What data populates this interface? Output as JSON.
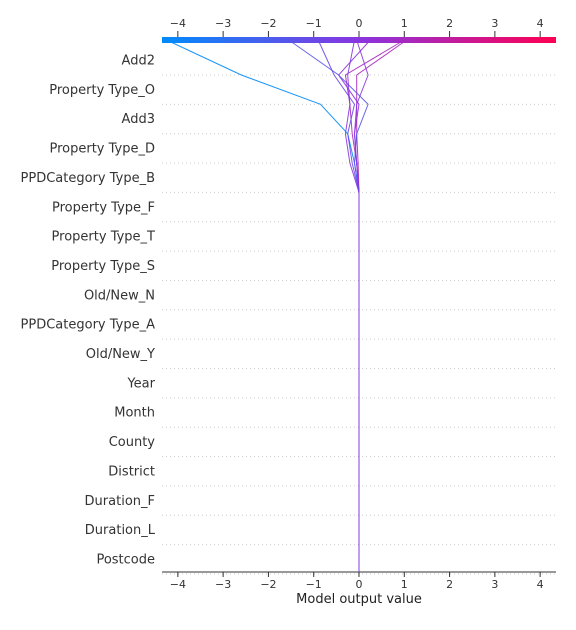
{
  "chart_data": {
    "type": "line",
    "title": "",
    "xlabel": "Model output value",
    "ylabel": "",
    "xlim": [
      -4.35,
      4.35
    ],
    "x_ticks": [
      "−4",
      "−3",
      "−2",
      "−1",
      "0",
      "1",
      "2",
      "3",
      "4"
    ],
    "x_tick_values": [
      -4,
      -3,
      -2,
      -1,
      0,
      1,
      2,
      3,
      4
    ],
    "features": [
      "Add2",
      "Property Type_O",
      "Add3",
      "Property Type_D",
      "PPDCategory Type_B",
      "Property Type_F",
      "Property Type_T",
      "Property Type_S",
      "Old/New_N",
      "PPDCategory Type_A",
      "Old/New_Y",
      "Year",
      "Month",
      "County",
      "District",
      "Duration_F",
      "Duration_L",
      "Postcode"
    ],
    "base_value": 0.0,
    "colorbar": {
      "min": -4.35,
      "max": 4.35,
      "low_color": "#008bfb",
      "mid_color": "#8a35e0",
      "high_color": "#ff0052"
    },
    "grid": "dotted horizontal",
    "series": [
      {
        "final_value": -4.25,
        "top_values": [
          -2.6,
          -0.85,
          -0.25,
          -0.1,
          0.0
        ]
      },
      {
        "final_value": 1.0,
        "top_values": [
          -0.3,
          -0.2,
          -0.15,
          -0.05,
          0.0
        ]
      },
      {
        "final_value": 1.05,
        "top_values": [
          -0.05,
          -0.05,
          -0.05,
          -0.02,
          0.0
        ]
      },
      {
        "final_value": 0.25,
        "top_values": [
          -0.45,
          0.0,
          -0.1,
          -0.05,
          0.0
        ]
      },
      {
        "final_value": -0.05,
        "top_values": [
          0.2,
          -0.05,
          -0.1,
          -0.05,
          0.0
        ]
      },
      {
        "final_value": -0.9,
        "top_values": [
          -0.55,
          -0.1,
          -0.25,
          -0.15,
          0.0
        ]
      },
      {
        "final_value": -1.55,
        "top_values": [
          -0.45,
          0.2,
          -0.05,
          -0.1,
          0.0
        ]
      },
      {
        "final_value": -0.1,
        "top_values": [
          -0.25,
          -0.2,
          -0.3,
          -0.2,
          0.0
        ]
      }
    ]
  }
}
